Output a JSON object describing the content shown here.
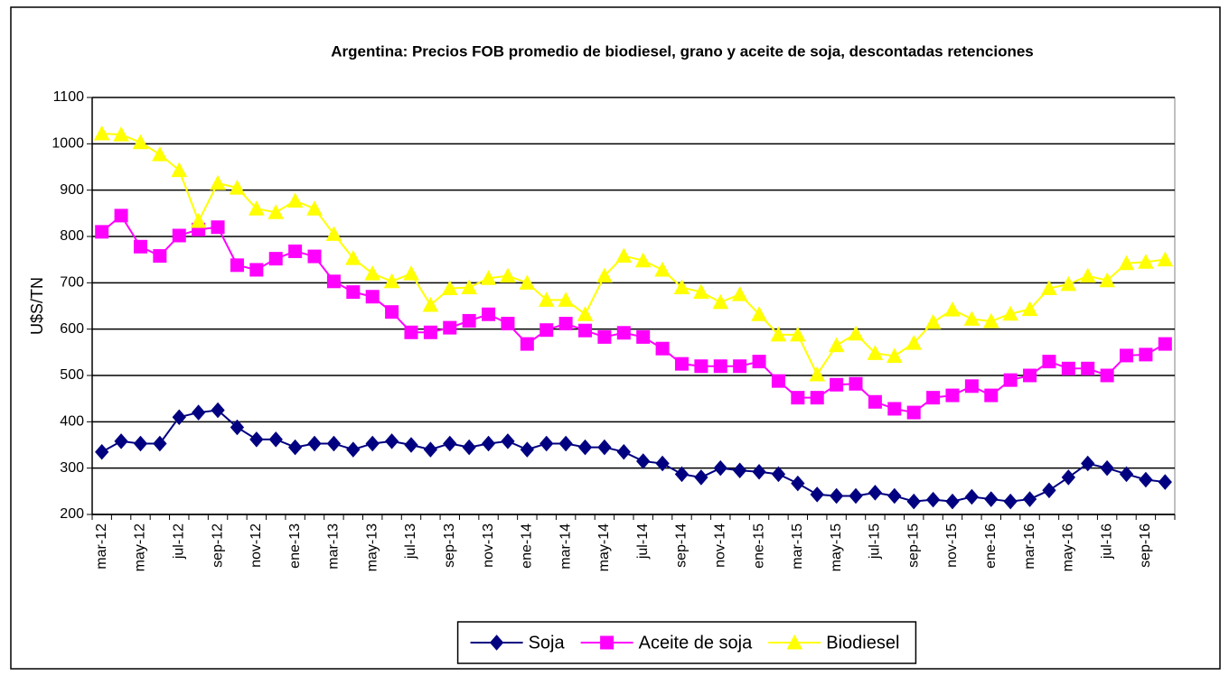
{
  "chart_data": {
    "type": "line",
    "title": "Argentina: Precios FOB  promedio de biodiesel, grano y aceite de soja, descontadas retenciones",
    "y_label": "U$S/TN",
    "categories": [
      "mar-12",
      null,
      "may-12",
      null,
      "jul-12",
      null,
      "sep-12",
      null,
      "nov-12",
      null,
      "ene-13",
      null,
      "mar-13",
      null,
      "may-13",
      null,
      "jul-13",
      null,
      "sep-13",
      null,
      "nov-13",
      null,
      "ene-14",
      null,
      "mar-14",
      null,
      "may-14",
      null,
      "jul-14",
      null,
      "sep-14",
      null,
      "nov-14",
      null,
      "ene-15",
      null,
      "mar-15",
      null,
      "may-15",
      null,
      "jul-15",
      null,
      "sep-15",
      null,
      "nov-15",
      null,
      "ene-16",
      null,
      "mar-16",
      null,
      "may-16",
      null,
      "jul-16",
      null,
      "sep-16",
      null
    ],
    "series": [
      {
        "name": "Soja",
        "color": "#000080",
        "marker": "diamond",
        "values": [
          335,
          358,
          353,
          353,
          410,
          420,
          425,
          388,
          362,
          362,
          345,
          353,
          353,
          340,
          353,
          358,
          350,
          340,
          353,
          345,
          353,
          358,
          340,
          353,
          353,
          345,
          345,
          335,
          315,
          310,
          287,
          280,
          300,
          295,
          292,
          287,
          267,
          243,
          240,
          240,
          247,
          240,
          228,
          232,
          228,
          238,
          233,
          228,
          233,
          252,
          280,
          310,
          300,
          287,
          275,
          270
        ]
      },
      {
        "name": "Aceite de soja",
        "color": "#ff00ff",
        "marker": "square",
        "values": [
          810,
          845,
          778,
          758,
          802,
          815,
          820,
          738,
          728,
          752,
          768,
          757,
          703,
          680,
          670,
          637,
          593,
          593,
          603,
          618,
          632,
          612,
          568,
          598,
          612,
          597,
          583,
          592,
          583,
          558,
          525,
          520,
          520,
          520,
          530,
          488,
          452,
          452,
          480,
          482,
          443,
          428,
          420,
          452,
          457,
          477,
          457,
          490,
          500,
          530,
          515,
          515,
          500,
          543,
          545,
          568
        ]
      },
      {
        "name": "Biodiesel",
        "color": "#ffff00",
        "marker": "triangle",
        "values": [
          1022,
          1020,
          1003,
          977,
          943,
          833,
          915,
          905,
          860,
          852,
          877,
          860,
          805,
          753,
          720,
          703,
          720,
          652,
          688,
          690,
          710,
          715,
          700,
          663,
          663,
          632,
          715,
          758,
          748,
          728,
          690,
          680,
          658,
          675,
          632,
          588,
          588,
          502,
          565,
          590,
          548,
          542,
          570,
          615,
          642,
          622,
          617,
          633,
          643,
          688,
          697,
          715,
          705,
          742,
          745,
          750
        ]
      }
    ],
    "ylim": [
      200,
      1100
    ],
    "yticks": [
      200,
      300,
      400,
      500,
      600,
      700,
      800,
      900,
      1000,
      1100
    ],
    "grid": true,
    "legend": "bottom"
  }
}
